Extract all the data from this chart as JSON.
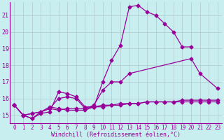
{
  "bg_color": "#c8eef0",
  "line_color": "#990099",
  "grid_color": "#b0c8cc",
  "xlabel": "Windchill (Refroidissement éolien,°C)",
  "xmin": -0.5,
  "xmax": 23.5,
  "ymin": 14.5,
  "ymax": 21.8,
  "yticks": [
    15,
    16,
    17,
    18,
    19,
    20,
    21
  ],
  "xticks": [
    0,
    1,
    2,
    3,
    4,
    5,
    6,
    7,
    8,
    9,
    10,
    11,
    12,
    13,
    14,
    15,
    16,
    17,
    18,
    19,
    20,
    21,
    22,
    23
  ],
  "s1_x": [
    0,
    1,
    2,
    3,
    4,
    5,
    6,
    7,
    8,
    9,
    10,
    11,
    12,
    13,
    14,
    15,
    16,
    17,
    18,
    19,
    20
  ],
  "s1_y": [
    15.6,
    15.0,
    14.8,
    15.1,
    15.2,
    16.4,
    16.3,
    16.1,
    15.5,
    15.5,
    17.0,
    18.3,
    19.2,
    21.5,
    21.6,
    21.2,
    21.0,
    20.5,
    20.0,
    19.1,
    19.1
  ],
  "s2_x": [
    0,
    1,
    2,
    3,
    4,
    5,
    6,
    7,
    8,
    9,
    10,
    11,
    12,
    13,
    20,
    21,
    23
  ],
  "s2_y": [
    15.6,
    15.0,
    14.8,
    15.2,
    15.4,
    16.0,
    16.1,
    16.0,
    15.4,
    15.6,
    16.5,
    17.0,
    17.0,
    17.5,
    18.4,
    17.5,
    16.6
  ],
  "s3_x": [
    0,
    1,
    2,
    3,
    4,
    5,
    6,
    7,
    8,
    9,
    10,
    11,
    12,
    13,
    14,
    15,
    16,
    17,
    18,
    19,
    20,
    21,
    22,
    23
  ],
  "s3_y": [
    15.6,
    15.0,
    15.1,
    15.2,
    15.4,
    15.3,
    15.4,
    15.4,
    15.4,
    15.5,
    15.5,
    15.6,
    15.7,
    15.7,
    15.7,
    15.8,
    15.8,
    15.8,
    15.8,
    15.9,
    15.9,
    15.9,
    15.9,
    15.9
  ],
  "s4_x": [
    0,
    1,
    2,
    3,
    4,
    5,
    6,
    7,
    8,
    9,
    10,
    11,
    12,
    13,
    14,
    15,
    16,
    17,
    18,
    19,
    20,
    21,
    22,
    23
  ],
  "s4_y": [
    15.6,
    15.0,
    15.1,
    15.2,
    15.5,
    15.4,
    15.3,
    15.3,
    15.3,
    15.5,
    15.6,
    15.6,
    15.6,
    15.7,
    15.7,
    15.8,
    15.8,
    15.8,
    15.8,
    15.8,
    15.8,
    15.8,
    15.8,
    15.8
  ],
  "figsize": [
    3.2,
    2.0
  ],
  "dpi": 100,
  "xlabel_fontsize": 6,
  "tick_fontsize": 5.5,
  "ytick_fontsize": 6,
  "markersize": 2.5,
  "linewidth": 0.9
}
